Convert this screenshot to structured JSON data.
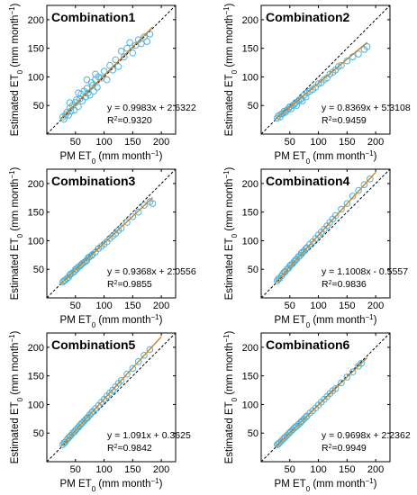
{
  "axes": {
    "xlabel": "PM ET",
    "xlabel_sub": "0",
    "xlabel_unit": " (mm month",
    "ylabel": "Estimated ET",
    "ylabel_sub": "0",
    "ylabel_unit": " (mm month",
    "unit_sup": "−1",
    "close_paren": ")",
    "r2_prefix": "R",
    "r2_sup": "2",
    "r2_eq": "="
  },
  "chart_data": [
    {
      "type": "scatter",
      "title": "Combination1",
      "equation": "y = 0.9983x + 2.6322",
      "r2": "0.9320",
      "slope": 0.9983,
      "intercept": 2.6322,
      "xlim": [
        0,
        225
      ],
      "ylim": [
        0,
        225
      ],
      "xticks": [
        50,
        100,
        150,
        200
      ],
      "yticks": [
        50,
        100,
        150,
        200
      ],
      "x": [
        28,
        30,
        33,
        35,
        38,
        40,
        42,
        45,
        48,
        50,
        52,
        55,
        58,
        60,
        62,
        65,
        68,
        70,
        72,
        75,
        78,
        80,
        82,
        85,
        88,
        90,
        95,
        100,
        105,
        110,
        115,
        120,
        125,
        130,
        135,
        140,
        145,
        150,
        155,
        160,
        165,
        170,
        175,
        180,
        40,
        55,
        70,
        85
      ],
      "y": [
        30,
        26,
        34,
        38,
        33,
        45,
        40,
        50,
        42,
        55,
        60,
        48,
        62,
        70,
        58,
        75,
        65,
        80,
        72,
        68,
        90,
        85,
        75,
        95,
        82,
        100,
        98,
        110,
        95,
        120,
        112,
        130,
        118,
        145,
        135,
        150,
        160,
        142,
        155,
        165,
        158,
        170,
        162,
        175,
        55,
        72,
        95,
        105
      ]
    },
    {
      "type": "scatter",
      "title": "Combination2",
      "equation": "y = 0.8369x + 5.3108",
      "r2": "0.9459",
      "slope": 0.8369,
      "intercept": 5.3108,
      "xlim": [
        0,
        225
      ],
      "ylim": [
        0,
        225
      ],
      "xticks": [
        50,
        100,
        150,
        200
      ],
      "yticks": [
        50,
        100,
        150,
        200
      ],
      "x": [
        28,
        30,
        33,
        35,
        38,
        40,
        42,
        45,
        48,
        50,
        52,
        55,
        58,
        60,
        62,
        65,
        68,
        70,
        72,
        75,
        78,
        80,
        85,
        90,
        95,
        100,
        105,
        110,
        115,
        120,
        125,
        130,
        135,
        140,
        150,
        160,
        170,
        180,
        185
      ],
      "y": [
        28,
        32,
        30,
        35,
        36,
        40,
        38,
        42,
        45,
        48,
        44,
        50,
        52,
        55,
        50,
        58,
        60,
        62,
        58,
        68,
        65,
        72,
        75,
        78,
        82,
        88,
        90,
        95,
        98,
        105,
        108,
        112,
        118,
        120,
        128,
        135,
        140,
        148,
        153
      ]
    },
    {
      "type": "scatter",
      "title": "Combination3",
      "equation": "y = 0.9368x + 2.0556",
      "r2": "0.9855",
      "slope": 0.9368,
      "intercept": 2.0556,
      "xlim": [
        0,
        225
      ],
      "ylim": [
        0,
        225
      ],
      "xticks": [
        50,
        100,
        150,
        200
      ],
      "yticks": [
        50,
        100,
        150,
        200
      ],
      "x": [
        28,
        30,
        32,
        35,
        38,
        40,
        42,
        45,
        48,
        50,
        52,
        55,
        58,
        60,
        62,
        65,
        68,
        70,
        72,
        75,
        78,
        80,
        85,
        90,
        95,
        100,
        105,
        110,
        115,
        120,
        125,
        130,
        140,
        150,
        160,
        170,
        180,
        185
      ],
      "y": [
        28,
        30,
        31,
        34,
        36,
        40,
        42,
        44,
        46,
        50,
        50,
        54,
        56,
        58,
        60,
        62,
        64,
        66,
        70,
        72,
        74,
        76,
        80,
        86,
        90,
        94,
        98,
        104,
        108,
        112,
        118,
        122,
        132,
        142,
        150,
        162,
        168,
        165
      ]
    },
    {
      "type": "scatter",
      "title": "Combination4",
      "equation": "y = 1.1008x - 0.5557",
      "r2": "0.9836",
      "slope": 1.1008,
      "intercept": -0.5557,
      "xlim": [
        0,
        225
      ],
      "ylim": [
        0,
        225
      ],
      "xticks": [
        50,
        100,
        150,
        200
      ],
      "yticks": [
        50,
        100,
        150,
        200
      ],
      "x": [
        28,
        30,
        32,
        35,
        38,
        40,
        42,
        45,
        48,
        50,
        52,
        55,
        58,
        60,
        62,
        65,
        68,
        70,
        72,
        75,
        78,
        80,
        85,
        90,
        95,
        100,
        105,
        110,
        115,
        120,
        125,
        130,
        140,
        150,
        160,
        170,
        180,
        190
      ],
      "y": [
        30,
        33,
        34,
        38,
        42,
        45,
        46,
        50,
        52,
        56,
        58,
        60,
        64,
        66,
        68,
        72,
        74,
        78,
        80,
        82,
        86,
        88,
        94,
        98,
        104,
        110,
        115,
        120,
        126,
        132,
        138,
        144,
        155,
        165,
        178,
        188,
        198,
        208
      ]
    },
    {
      "type": "scatter",
      "title": "Combination5",
      "equation": "y = 1.091x + 0.3625",
      "r2": "0.9842",
      "slope": 1.091,
      "intercept": 0.3625,
      "xlim": [
        0,
        225
      ],
      "ylim": [
        0,
        225
      ],
      "xticks": [
        50,
        100,
        150,
        200
      ],
      "yticks": [
        50,
        100,
        150,
        200
      ],
      "x": [
        28,
        30,
        32,
        35,
        38,
        40,
        42,
        45,
        48,
        50,
        52,
        55,
        58,
        60,
        62,
        65,
        68,
        70,
        72,
        75,
        78,
        80,
        85,
        90,
        95,
        100,
        105,
        110,
        115,
        120,
        125,
        130,
        140,
        150,
        160,
        170,
        180
      ],
      "y": [
        30,
        33,
        34,
        38,
        42,
        44,
        46,
        50,
        52,
        55,
        57,
        60,
        64,
        66,
        68,
        71,
        74,
        76,
        78,
        82,
        85,
        88,
        93,
        98,
        104,
        109,
        115,
        120,
        125,
        131,
        137,
        142,
        153,
        163,
        175,
        186,
        196
      ]
    },
    {
      "type": "scatter",
      "title": "Combination6",
      "equation": "y = 0.9698x + 2.2362",
      "r2": "0.9949",
      "slope": 0.9698,
      "intercept": 2.2362,
      "xlim": [
        0,
        225
      ],
      "ylim": [
        0,
        225
      ],
      "xticks": [
        50,
        100,
        150,
        200
      ],
      "yticks": [
        50,
        100,
        150,
        200
      ],
      "x": [
        28,
        30,
        32,
        35,
        38,
        40,
        42,
        45,
        48,
        50,
        52,
        55,
        58,
        60,
        62,
        65,
        68,
        70,
        72,
        75,
        78,
        80,
        85,
        90,
        95,
        100,
        105,
        110,
        115,
        120,
        125,
        130,
        140,
        150,
        160,
        170,
        175
      ],
      "y": [
        30,
        31,
        33,
        36,
        39,
        41,
        43,
        46,
        49,
        51,
        53,
        56,
        59,
        61,
        62,
        65,
        68,
        70,
        72,
        75,
        78,
        80,
        85,
        89,
        94,
        99,
        104,
        109,
        114,
        119,
        124,
        128,
        138,
        148,
        157,
        167,
        172
      ]
    }
  ]
}
